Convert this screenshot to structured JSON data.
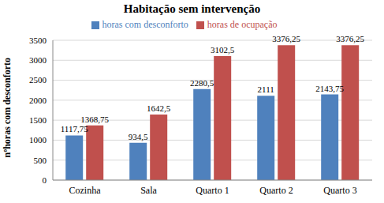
{
  "chart_data": {
    "type": "bar",
    "title": "Habitação sem intervenção",
    "y_label": "nºhoras com desconforto",
    "categories": [
      "Cozinha",
      "Sala",
      "Quarto 1",
      "Quarto 2",
      "Quarto 3"
    ],
    "series": [
      {
        "name": "horas com desconforto",
        "color": "#4f81bd",
        "values": [
          1117.75,
          934.5,
          2280.5,
          2111,
          2143.75
        ],
        "value_labels": [
          "1117,75",
          "934,5",
          "2280,5",
          "2111",
          "2143,75"
        ]
      },
      {
        "name": "horas de ocupação",
        "color": "#c0504d",
        "values": [
          1368.75,
          1642.5,
          3102.5,
          3376.25,
          3376.25
        ],
        "value_labels": [
          "1368,75",
          "1642,5",
          "3102,5",
          "3376,25",
          "3376,25"
        ]
      }
    ],
    "ylim": [
      0,
      3500
    ],
    "yticks": [
      0,
      500,
      1000,
      1500,
      2000,
      2500,
      3000,
      3500
    ],
    "grid": true,
    "legend": "top",
    "data_labels": true
  }
}
